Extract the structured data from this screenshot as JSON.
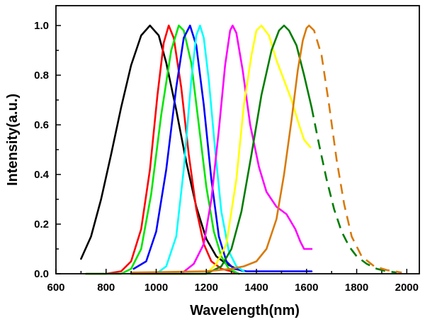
{
  "chart_data": {
    "type": "line",
    "title": "",
    "xlabel": "Wavelength(nm)",
    "ylabel": "Intensity(a.u.)",
    "xlim": [
      600,
      2050
    ],
    "ylim": [
      0.0,
      1.08
    ],
    "xticks": [
      600,
      800,
      1000,
      1200,
      1400,
      1600,
      1800,
      2000
    ],
    "yticks": [
      0.0,
      0.2,
      0.4,
      0.6,
      0.8,
      1.0
    ],
    "xtick_labels": [
      "600",
      "800",
      "1000",
      "1200",
      "1400",
      "1600",
      "1800",
      "2000"
    ],
    "ytick_labels": [
      "0.0",
      "0.2",
      "0.4",
      "0.6",
      "0.8",
      "1.0"
    ],
    "legend": "none",
    "grid": false,
    "series": [
      {
        "name": "black",
        "color": "#000000",
        "points": [
          [
            700,
            0.06
          ],
          [
            740,
            0.15
          ],
          [
            780,
            0.3
          ],
          [
            820,
            0.48
          ],
          [
            860,
            0.67
          ],
          [
            900,
            0.84
          ],
          [
            940,
            0.96
          ],
          [
            975,
            1.0
          ],
          [
            1010,
            0.96
          ],
          [
            1040,
            0.85
          ],
          [
            1080,
            0.66
          ],
          [
            1120,
            0.45
          ],
          [
            1160,
            0.27
          ],
          [
            1200,
            0.14
          ],
          [
            1240,
            0.07
          ],
          [
            1280,
            0.04
          ],
          [
            1320,
            0.02
          ],
          [
            1350,
            0.01
          ]
        ]
      },
      {
        "name": "red",
        "color": "#ff0000",
        "points": [
          [
            720,
            0.0
          ],
          [
            800,
            0.0
          ],
          [
            860,
            0.01
          ],
          [
            900,
            0.05
          ],
          [
            940,
            0.18
          ],
          [
            975,
            0.42
          ],
          [
            1005,
            0.72
          ],
          [
            1030,
            0.93
          ],
          [
            1050,
            1.0
          ],
          [
            1070,
            0.95
          ],
          [
            1100,
            0.75
          ],
          [
            1130,
            0.48
          ],
          [
            1160,
            0.26
          ],
          [
            1190,
            0.12
          ],
          [
            1220,
            0.05
          ],
          [
            1260,
            0.02
          ],
          [
            1300,
            0.01
          ],
          [
            1330,
            0.0
          ]
        ]
      },
      {
        "name": "green",
        "color": "#00e600",
        "points": [
          [
            720,
            0.0
          ],
          [
            860,
            0.0
          ],
          [
            900,
            0.02
          ],
          [
            940,
            0.1
          ],
          [
            980,
            0.32
          ],
          [
            1020,
            0.64
          ],
          [
            1060,
            0.9
          ],
          [
            1090,
            1.0
          ],
          [
            1110,
            0.98
          ],
          [
            1140,
            0.85
          ],
          [
            1170,
            0.6
          ],
          [
            1200,
            0.35
          ],
          [
            1230,
            0.17
          ],
          [
            1260,
            0.07
          ],
          [
            1290,
            0.02
          ],
          [
            1330,
            0.0
          ]
        ]
      },
      {
        "name": "blue",
        "color": "#0000ff",
        "points": [
          [
            910,
            0.02
          ],
          [
            960,
            0.05
          ],
          [
            1000,
            0.17
          ],
          [
            1040,
            0.42
          ],
          [
            1080,
            0.75
          ],
          [
            1110,
            0.95
          ],
          [
            1135,
            1.0
          ],
          [
            1160,
            0.92
          ],
          [
            1190,
            0.68
          ],
          [
            1220,
            0.38
          ],
          [
            1250,
            0.15
          ],
          [
            1280,
            0.05
          ],
          [
            1310,
            0.02
          ],
          [
            1360,
            0.01
          ],
          [
            1620,
            0.01
          ]
        ]
      },
      {
        "name": "cyan",
        "color": "#00ffff",
        "points": [
          [
            1000,
            0.0
          ],
          [
            1040,
            0.03
          ],
          [
            1080,
            0.15
          ],
          [
            1110,
            0.42
          ],
          [
            1140,
            0.78
          ],
          [
            1160,
            0.96
          ],
          [
            1175,
            1.0
          ],
          [
            1190,
            0.95
          ],
          [
            1210,
            0.78
          ],
          [
            1235,
            0.5
          ],
          [
            1260,
            0.25
          ],
          [
            1290,
            0.09
          ],
          [
            1320,
            0.03
          ],
          [
            1350,
            0.01
          ]
        ]
      },
      {
        "name": "magenta",
        "color": "#ff00ff",
        "points": [
          [
            1100,
            0.0
          ],
          [
            1150,
            0.04
          ],
          [
            1190,
            0.12
          ],
          [
            1220,
            0.3
          ],
          [
            1250,
            0.58
          ],
          [
            1275,
            0.84
          ],
          [
            1295,
            0.98
          ],
          [
            1305,
            1.0
          ],
          [
            1320,
            0.97
          ],
          [
            1345,
            0.82
          ],
          [
            1375,
            0.6
          ],
          [
            1410,
            0.43
          ],
          [
            1440,
            0.33
          ],
          [
            1480,
            0.27
          ],
          [
            1520,
            0.24
          ],
          [
            1555,
            0.18
          ],
          [
            1575,
            0.13
          ],
          [
            1590,
            0.1
          ],
          [
            1620,
            0.1
          ]
        ]
      },
      {
        "name": "yellow",
        "color": "#ffff00",
        "points": [
          [
            900,
            0.0
          ],
          [
            1200,
            0.0
          ],
          [
            1240,
            0.04
          ],
          [
            1280,
            0.12
          ],
          [
            1320,
            0.38
          ],
          [
            1350,
            0.68
          ],
          [
            1380,
            0.88
          ],
          [
            1400,
            0.98
          ],
          [
            1420,
            1.0
          ],
          [
            1450,
            0.96
          ],
          [
            1480,
            0.86
          ],
          [
            1510,
            0.78
          ],
          [
            1540,
            0.7
          ],
          [
            1570,
            0.6
          ],
          [
            1590,
            0.54
          ],
          [
            1615,
            0.51
          ]
        ]
      },
      {
        "name": "dark green",
        "color": "#007d00",
        "points": [
          [
            900,
            0.0
          ],
          [
            1200,
            0.0
          ],
          [
            1260,
            0.03
          ],
          [
            1300,
            0.1
          ],
          [
            1340,
            0.25
          ],
          [
            1380,
            0.48
          ],
          [
            1420,
            0.72
          ],
          [
            1460,
            0.9
          ],
          [
            1490,
            0.98
          ],
          [
            1510,
            1.0
          ],
          [
            1530,
            0.98
          ],
          [
            1560,
            0.92
          ],
          [
            1590,
            0.8
          ],
          [
            1620,
            0.67
          ]
        ]
      },
      {
        "name": "dark green (extrapolated)",
        "color": "#007d00",
        "dashed": true,
        "points": [
          [
            1620,
            0.67
          ],
          [
            1650,
            0.52
          ],
          [
            1680,
            0.38
          ],
          [
            1710,
            0.26
          ],
          [
            1740,
            0.17
          ],
          [
            1770,
            0.11
          ],
          [
            1800,
            0.07
          ],
          [
            1840,
            0.04
          ],
          [
            1880,
            0.02
          ],
          [
            1920,
            0.01
          ],
          [
            1960,
            0.005
          ]
        ]
      },
      {
        "name": "orange",
        "color": "#d87a0a",
        "points": [
          [
            900,
            0.005
          ],
          [
            1200,
            0.01
          ],
          [
            1300,
            0.02
          ],
          [
            1350,
            0.03
          ],
          [
            1400,
            0.05
          ],
          [
            1440,
            0.1
          ],
          [
            1480,
            0.22
          ],
          [
            1510,
            0.4
          ],
          [
            1540,
            0.62
          ],
          [
            1565,
            0.82
          ],
          [
            1585,
            0.94
          ],
          [
            1600,
            0.99
          ],
          [
            1610,
            1.0
          ]
        ]
      },
      {
        "name": "orange (extrapolated)",
        "color": "#d87a0a",
        "dashed": true,
        "points": [
          [
            1610,
            1.0
          ],
          [
            1630,
            0.98
          ],
          [
            1660,
            0.88
          ],
          [
            1690,
            0.68
          ],
          [
            1720,
            0.46
          ],
          [
            1750,
            0.28
          ],
          [
            1780,
            0.15
          ],
          [
            1820,
            0.07
          ],
          [
            1870,
            0.03
          ],
          [
            1920,
            0.015
          ],
          [
            1980,
            0.005
          ]
        ]
      }
    ]
  }
}
